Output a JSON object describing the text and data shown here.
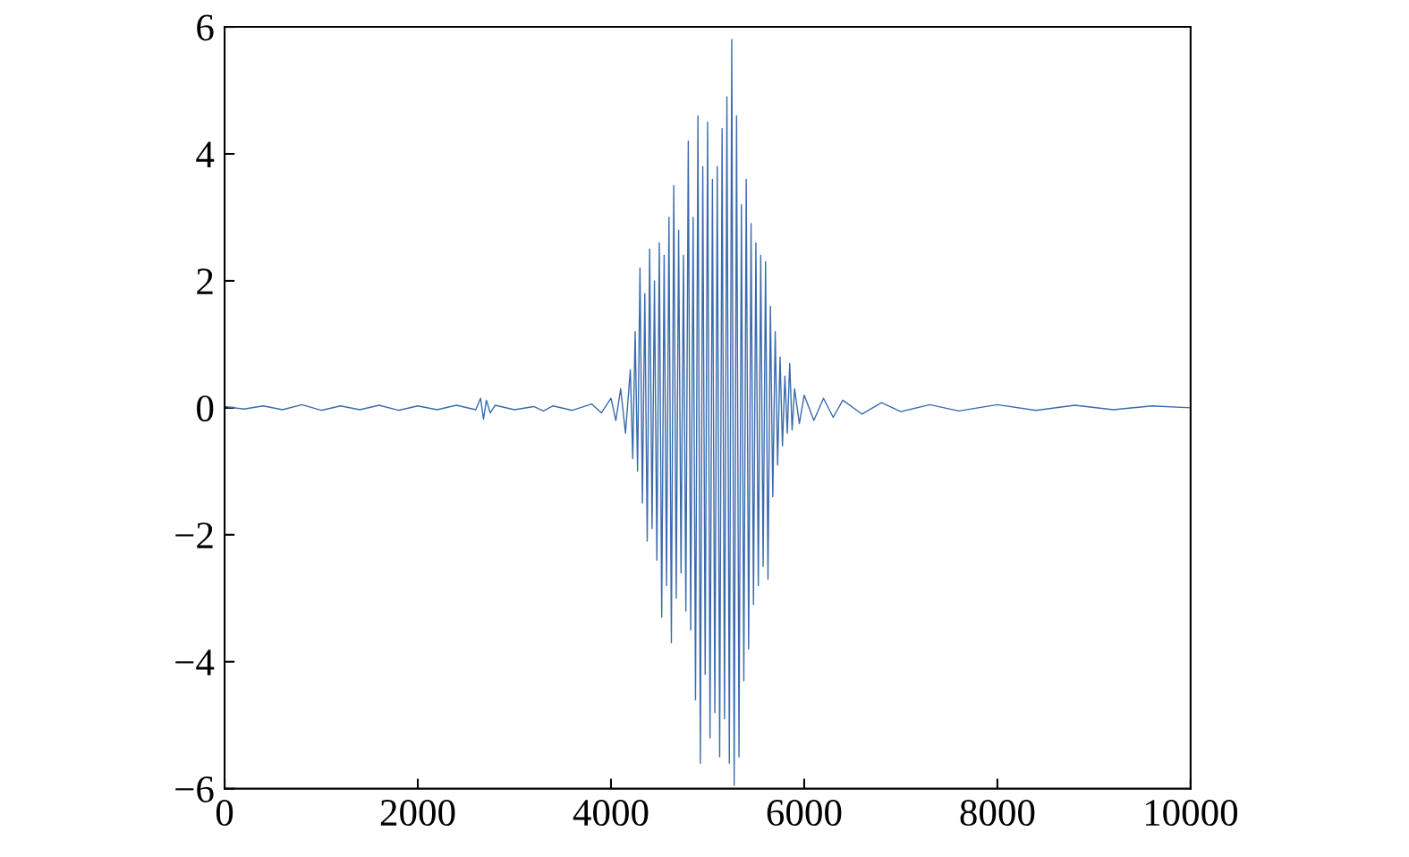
{
  "chart_data": {
    "type": "line",
    "x": [
      0,
      200,
      400,
      600,
      800,
      1000,
      1200,
      1400,
      1600,
      1800,
      2000,
      2200,
      2400,
      2600,
      2650,
      2680,
      2710,
      2750,
      2800,
      3000,
      3200,
      3300,
      3400,
      3600,
      3800,
      3900,
      4000,
      4050,
      4100,
      4150,
      4200,
      4225,
      4250,
      4275,
      4300,
      4325,
      4350,
      4375,
      4400,
      4425,
      4450,
      4475,
      4500,
      4525,
      4550,
      4575,
      4600,
      4625,
      4650,
      4675,
      4700,
      4725,
      4750,
      4775,
      4800,
      4825,
      4850,
      4875,
      4900,
      4925,
      4950,
      4975,
      5000,
      5025,
      5050,
      5075,
      5100,
      5125,
      5150,
      5175,
      5200,
      5225,
      5250,
      5275,
      5300,
      5325,
      5350,
      5375,
      5400,
      5425,
      5450,
      5475,
      5500,
      5525,
      5550,
      5575,
      5600,
      5625,
      5650,
      5675,
      5700,
      5725,
      5750,
      5775,
      5800,
      5825,
      5850,
      5875,
      5900,
      5950,
      6000,
      6100,
      6200,
      6300,
      6400,
      6600,
      6800,
      7000,
      7300,
      7600,
      8000,
      8400,
      8800,
      9200,
      9600,
      10000
    ],
    "series": [
      {
        "color": "#3a6aad",
        "values": [
          0.02,
          -0.02,
          0.03,
          -0.03,
          0.05,
          -0.04,
          0.03,
          -0.03,
          0.04,
          -0.04,
          0.03,
          -0.03,
          0.04,
          -0.03,
          0.15,
          -0.18,
          0.12,
          -0.08,
          0.04,
          -0.03,
          0.02,
          -0.05,
          0.03,
          -0.04,
          0.06,
          -0.08,
          0.15,
          -0.2,
          0.3,
          -0.4,
          0.6,
          -0.8,
          1.2,
          -1.0,
          2.2,
          -1.5,
          1.8,
          -2.1,
          2.5,
          -1.9,
          2.0,
          -2.4,
          2.6,
          -3.3,
          2.4,
          -2.8,
          3.0,
          -3.7,
          3.5,
          -3.0,
          2.8,
          -2.6,
          2.4,
          -3.2,
          4.2,
          -3.5,
          3.0,
          -4.6,
          4.6,
          -5.6,
          3.8,
          -4.2,
          4.5,
          -5.2,
          3.6,
          -4.8,
          3.8,
          -5.5,
          4.4,
          -4.9,
          4.9,
          -5.6,
          5.8,
          -5.95,
          4.6,
          -5.5,
          3.2,
          -4.3,
          3.6,
          -3.8,
          2.9,
          -3.1,
          2.6,
          -2.8,
          2.4,
          -2.5,
          2.3,
          -2.7,
          1.6,
          -1.4,
          1.2,
          -0.9,
          0.8,
          -0.6,
          0.5,
          -0.4,
          0.7,
          -0.35,
          0.3,
          -0.25,
          0.2,
          -0.2,
          0.15,
          -0.15,
          0.12,
          -0.1,
          0.08,
          -0.06,
          0.05,
          -0.05,
          0.05,
          -0.04,
          0.04,
          -0.03,
          0.03,
          0.0
        ]
      }
    ],
    "xlim": [
      0,
      10000
    ],
    "xticks": [
      0,
      2000,
      4000,
      6000,
      8000,
      10000
    ],
    "ylim": [
      -6,
      6
    ],
    "yticks": [
      {
        "value": -6,
        "label": "−6"
      },
      {
        "value": -4,
        "label": "−4"
      },
      {
        "value": -2,
        "label": "−2"
      },
      0,
      2,
      4,
      6
    ],
    "grid": false,
    "legend": false
  }
}
